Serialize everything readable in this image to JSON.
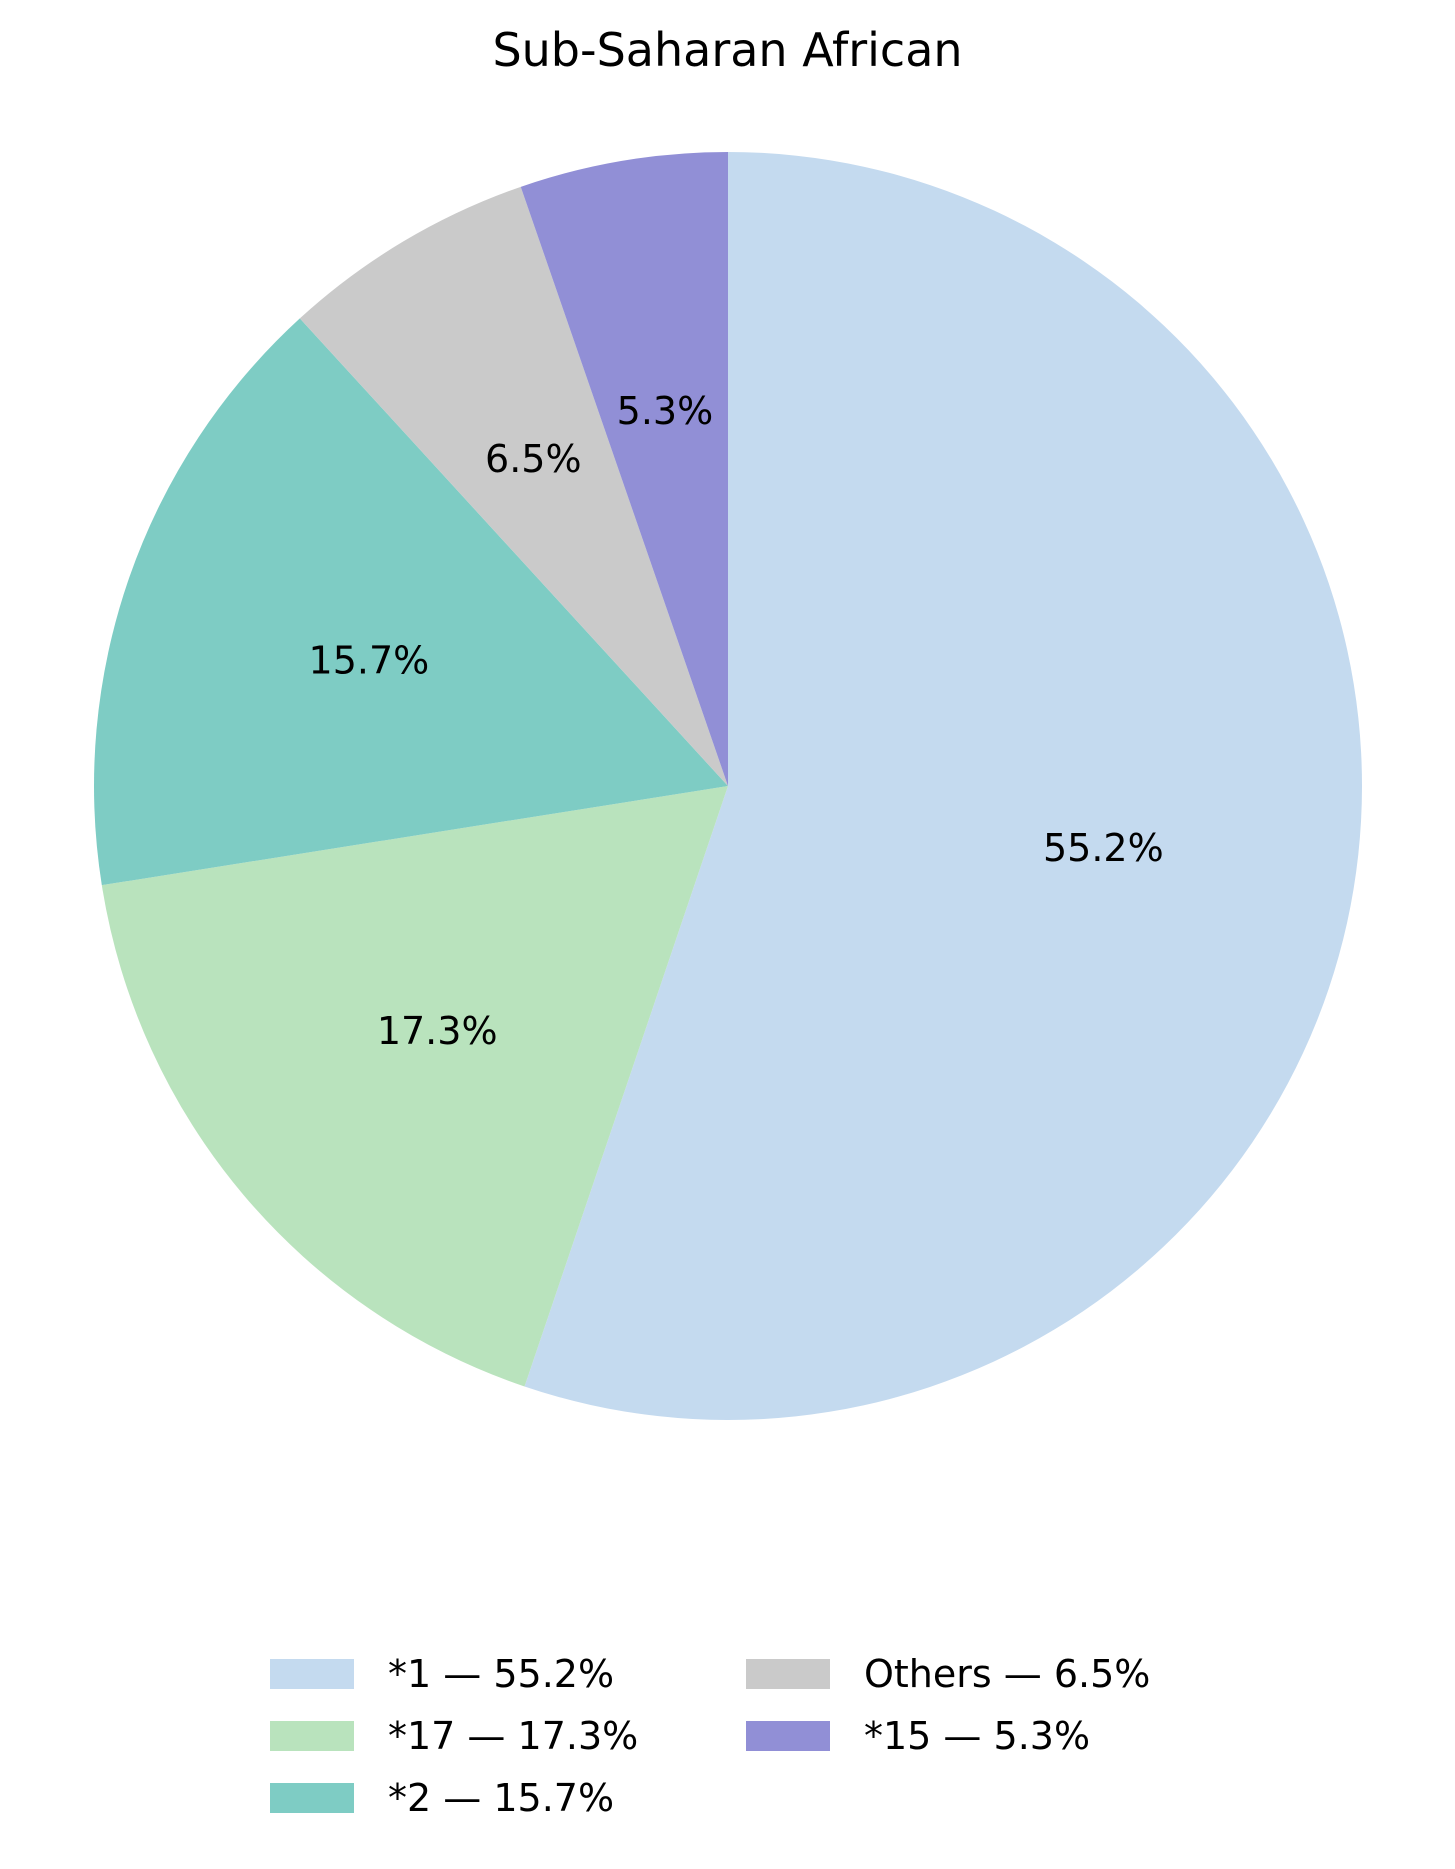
{
  "chart_data": {
    "type": "pie",
    "title": "Sub-Saharan African",
    "slices": [
      {
        "name": "*1",
        "value": 55.2,
        "label": "55.2%",
        "legend": "*1 — 55.2%",
        "color": "#c4daef"
      },
      {
        "name": "*17",
        "value": 17.3,
        "label": "17.3%",
        "legend": "*17 — 17.3%",
        "color": "#b9e3bd"
      },
      {
        "name": "*2",
        "value": 15.7,
        "label": "15.7%",
        "legend": "*2 — 15.7%",
        "color": "#7eccc4"
      },
      {
        "name": "Others",
        "value": 6.5,
        "label": "6.5%",
        "legend": "Others — 6.5%",
        "color": "#cacaca"
      },
      {
        "name": "*15",
        "value": 5.3,
        "label": "5.3%",
        "legend": "*15 — 5.3%",
        "color": "#918fd6"
      }
    ],
    "start_angle": "top (12 o'clock)",
    "direction": "clockwise",
    "legend_position": "bottom-center"
  }
}
